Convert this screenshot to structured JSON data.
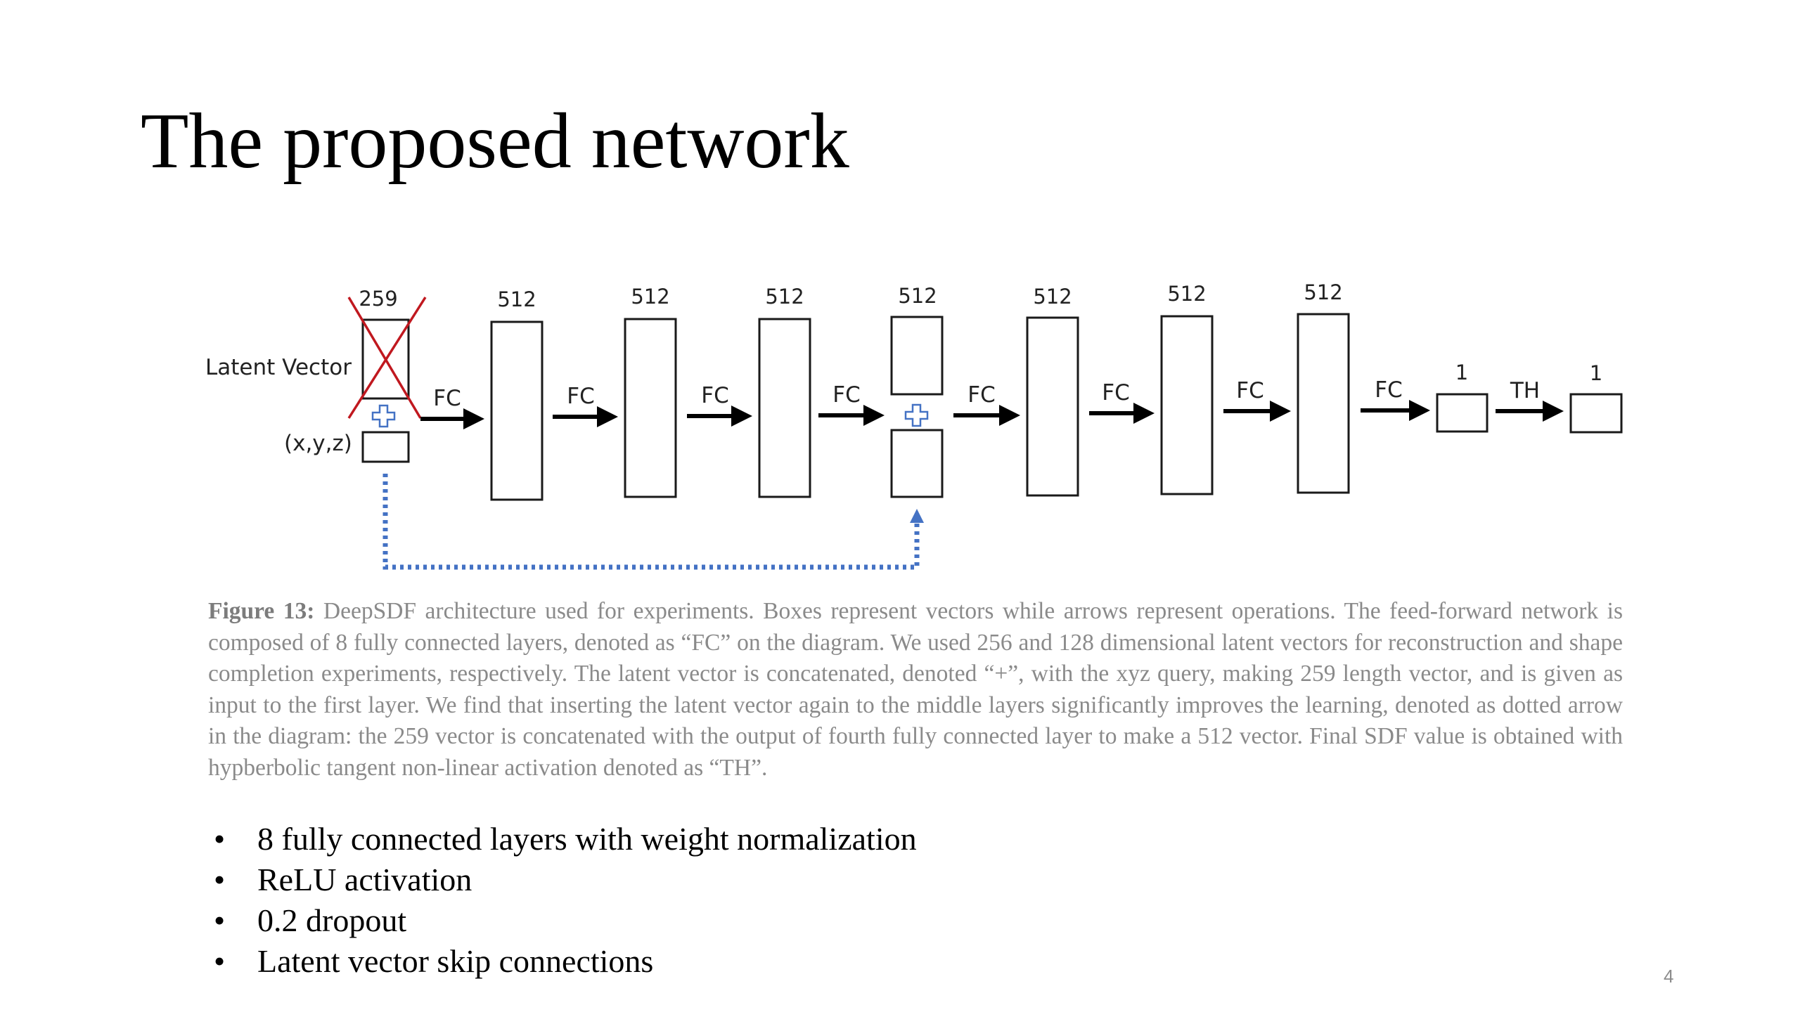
{
  "slide": {
    "title": "The proposed network",
    "page_number": "4"
  },
  "diagram": {
    "input_labels": {
      "latent_vector": "Latent Vector",
      "xyz": "(x,y,z)"
    },
    "input_dim": "259",
    "layer_dims": [
      "512",
      "512",
      "512",
      "512",
      "512",
      "512",
      "512"
    ],
    "output_dims": [
      "1",
      "1"
    ],
    "ops": [
      "FC",
      "FC",
      "FC",
      "FC",
      "FC",
      "FC",
      "FC",
      "FC",
      "TH"
    ],
    "concat_symbol": "+",
    "colors": {
      "cross_out": "#c0181f",
      "skip_connection": "#4472c4",
      "arrow": "#000000"
    }
  },
  "caption": {
    "label": "Figure 13:",
    "text": " DeepSDF architecture used for experiments. Boxes represent vectors while arrows represent operations. The feed-forward network is composed of 8 fully connected layers, denoted as “FC” on the diagram. We used 256 and 128 dimensional latent vectors for reconstruction and shape completion experiments, respectively. The latent vector is concatenated, denoted “+”, with the xyz query, making 259 length vector, and is given as input to the first layer. We find that inserting the latent vector again to the middle layers significantly improves the learning, denoted as dotted arrow in the diagram: the 259 vector is concatenated with the output of fourth fully connected layer to make a 512 vector. Final SDF value is obtained with hypberbolic tangent non-linear activation denoted as “TH”."
  },
  "bullets": [
    "8 fully connected layers with weight normalization",
    "ReLU activation",
    "0.2 dropout",
    "Latent vector skip connections"
  ],
  "bullet_symbol": "•"
}
